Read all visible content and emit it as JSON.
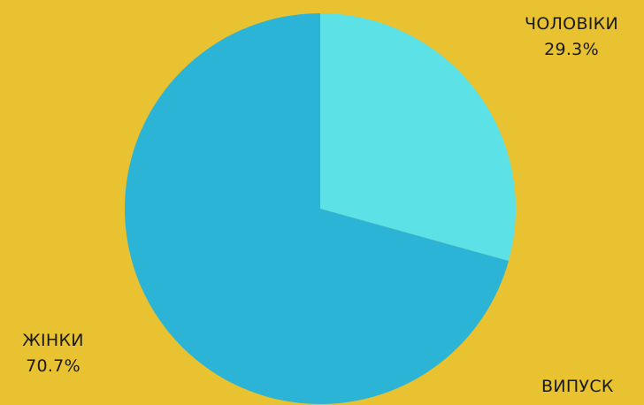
{
  "chart_data": {
    "type": "pie",
    "slices": [
      {
        "label": "ЧОЛОВІКИ",
        "value": 29.3,
        "display": "29.3%",
        "color": "#5CE1E6"
      },
      {
        "label": "ЖІНКИ",
        "value": 70.7,
        "display": "70.7%",
        "color": "#2BB4D5"
      }
    ],
    "start_angle_deg": 0,
    "direction": "clockwise"
  },
  "background_color": "#E8C230",
  "cut_off_label": "ВИПУСК"
}
